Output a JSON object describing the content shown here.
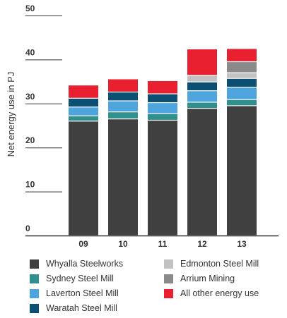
{
  "chart_data": {
    "type": "bar",
    "stacked": true,
    "title": "",
    "xlabel": "",
    "ylabel": "Net energy use in PJ",
    "ylim": [
      0,
      50
    ],
    "yticks": [
      "0",
      "10",
      "20",
      "30",
      "40",
      "50"
    ],
    "categories": [
      "09",
      "10",
      "11",
      "12",
      "13"
    ],
    "series": [
      {
        "name": "Whyalla Steelworks",
        "color": "#404040",
        "values": [
          26.0,
          26.5,
          26.2,
          28.9,
          29.5
        ]
      },
      {
        "name": "Sydney Steel Mill",
        "color": "#30908e",
        "values": [
          1.2,
          1.6,
          1.5,
          1.4,
          1.4
        ]
      },
      {
        "name": "Laverton Steel Mill",
        "color": "#4ea4dc",
        "values": [
          2.0,
          2.5,
          2.5,
          2.6,
          2.8
        ]
      },
      {
        "name": "Waratah Steel Mill",
        "color": "#0b4f72",
        "values": [
          2.0,
          2.0,
          2.0,
          2.0,
          2.0
        ]
      },
      {
        "name": "Edmonton Steel Mill",
        "color": "#c2c2c2",
        "values": [
          0.0,
          0.0,
          0.0,
          1.5,
          1.3
        ]
      },
      {
        "name": "Arrium Mining",
        "color": "#8a8a8a",
        "values": [
          0.0,
          0.0,
          0.0,
          0.0,
          2.5
        ]
      },
      {
        "name": "All other energy use",
        "color": "#e8202f",
        "values": [
          3.0,
          3.0,
          3.0,
          6.0,
          3.0
        ]
      }
    ],
    "grid": false,
    "legend": "bottom"
  },
  "legend": {
    "items": [
      {
        "label": "Whyalla Steelworks",
        "color": "#404040"
      },
      {
        "label": "Sydney Steel Mill",
        "color": "#30908e"
      },
      {
        "label": "Laverton Steel Mill",
        "color": "#4ea4dc"
      },
      {
        "label": "Waratah Steel Mill",
        "color": "#0b4f72"
      },
      {
        "label": "Edmonton Steel Mill",
        "color": "#c2c2c2"
      },
      {
        "label": "Arrium Mining",
        "color": "#8a8a8a"
      },
      {
        "label": "All other energy use",
        "color": "#e8202f"
      }
    ]
  }
}
